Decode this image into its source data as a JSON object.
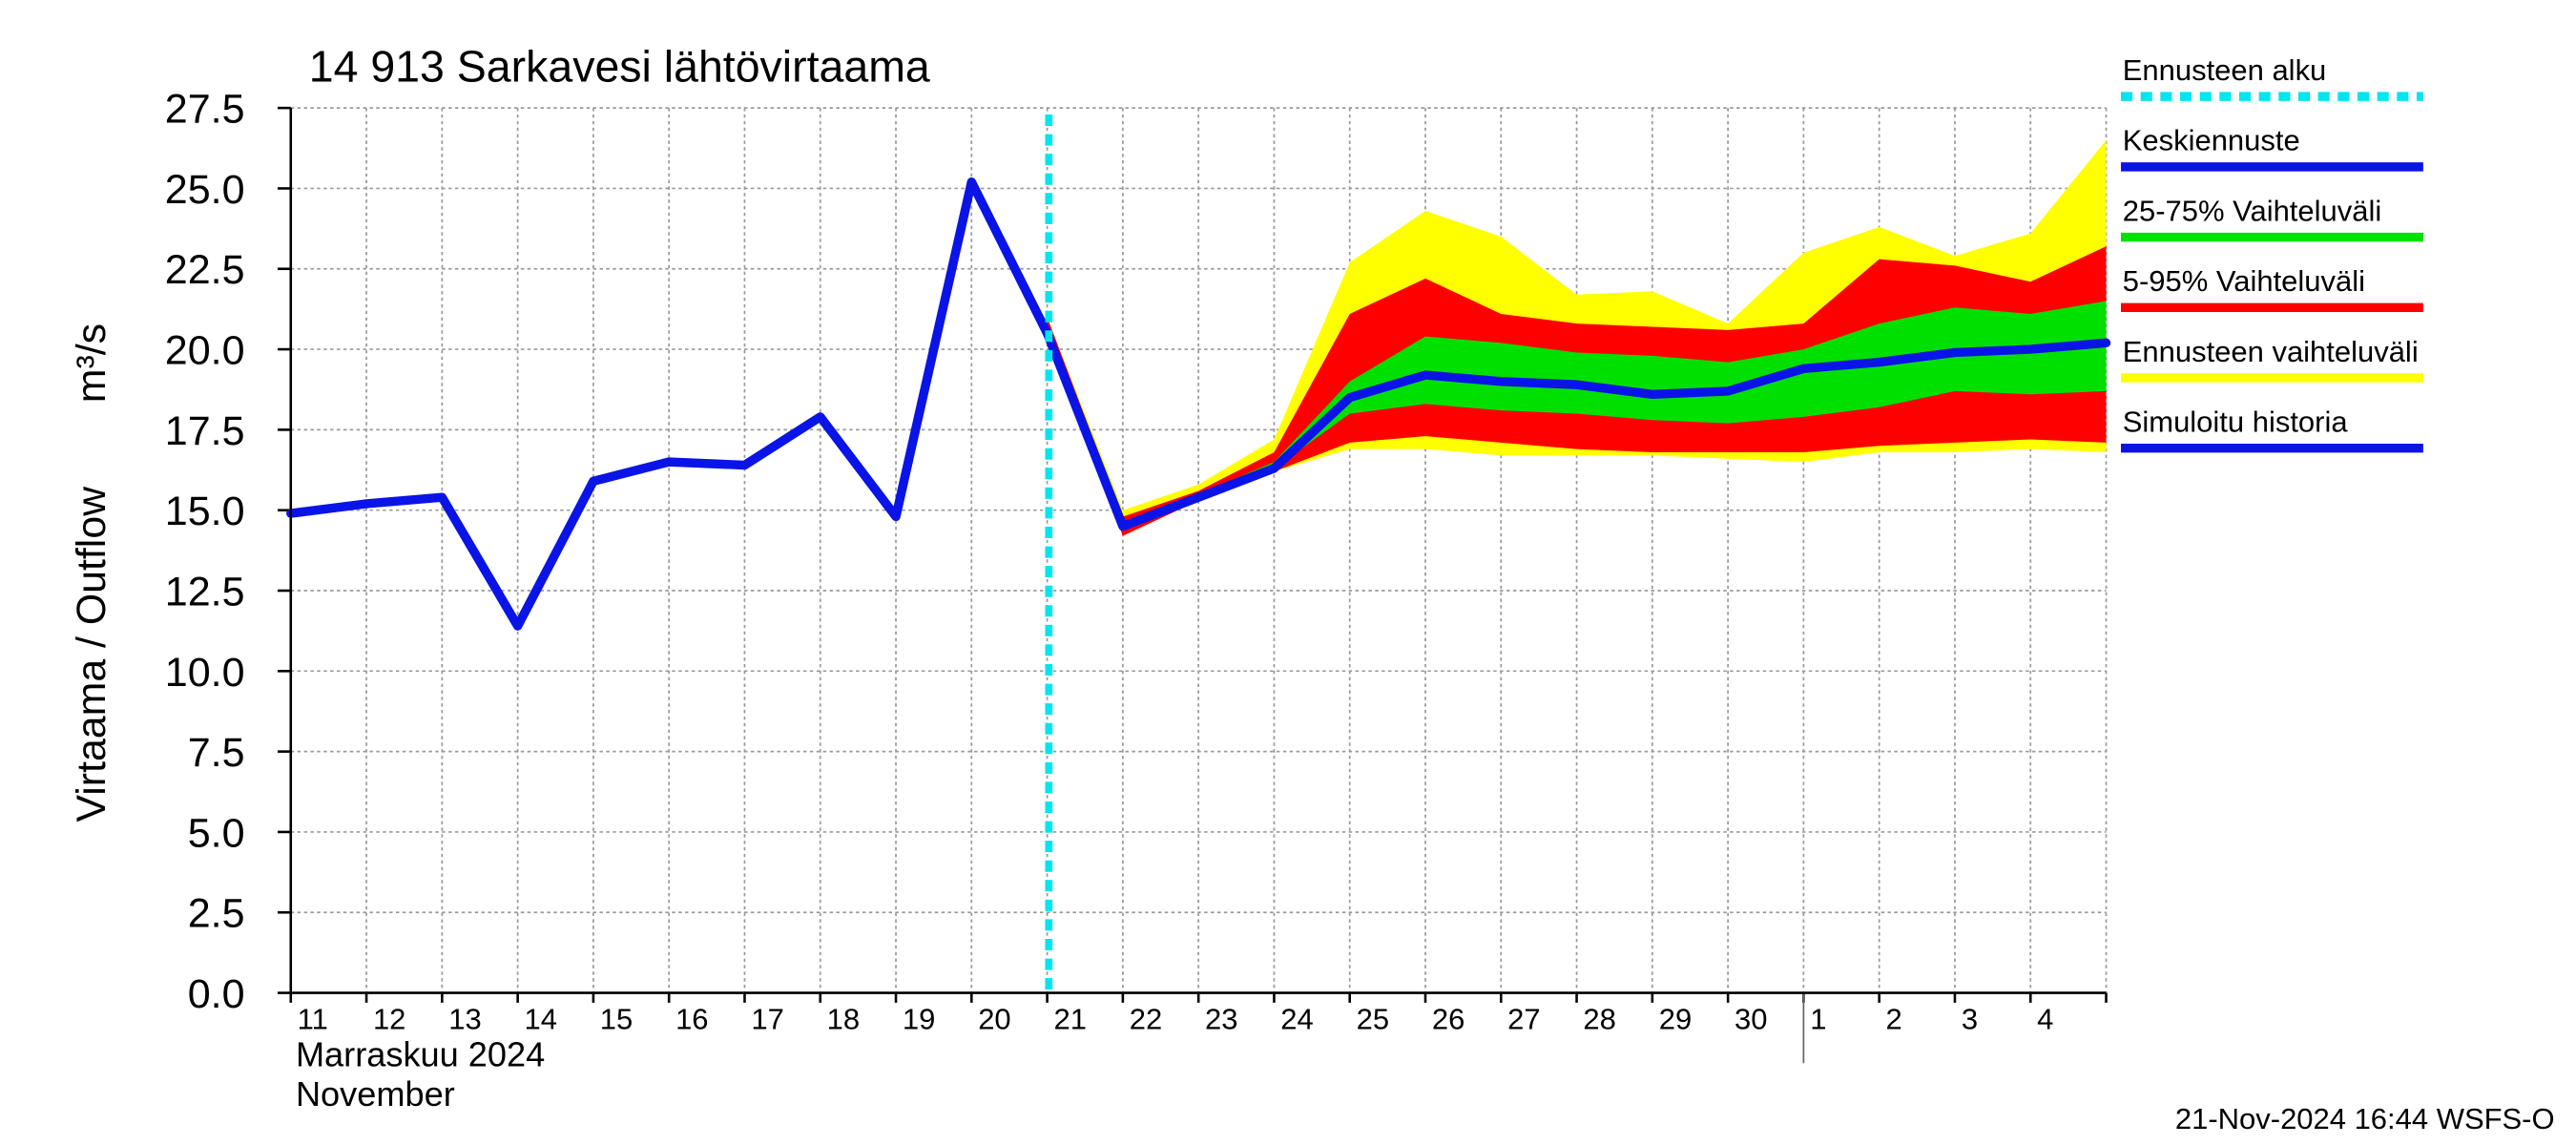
{
  "chart_data": {
    "type": "band_line",
    "title": "14 913 Sarkavesi lähtövirtaama",
    "y_label": "Virtaama / Outflow",
    "y_unit": "m³/s",
    "x_label": [
      "Marraskuu 2024",
      "November"
    ],
    "footer": "21-Nov-2024 16:44 WSFS-O",
    "categories": [
      "11",
      "12",
      "13",
      "14",
      "15",
      "16",
      "17",
      "18",
      "19",
      "20",
      "21",
      "22",
      "23",
      "24",
      "25",
      "26",
      "27",
      "28",
      "29",
      "30",
      "1",
      "2",
      "3",
      "4",
      null
    ],
    "ylim": [
      0,
      27.5
    ],
    "yticks": [
      {
        "value": 0,
        "label": "0.0"
      },
      {
        "value": 2.5,
        "label": "2.5"
      },
      {
        "value": 5,
        "label": "5.0"
      },
      {
        "value": 7.5,
        "label": "7.5"
      },
      {
        "value": 10,
        "label": "10.0"
      },
      {
        "value": 12.5,
        "label": "12.5"
      },
      {
        "value": 15,
        "label": "15.0"
      },
      {
        "value": 17.5,
        "label": "17.5"
      },
      {
        "value": 20,
        "label": "20.0"
      },
      {
        "value": 22.5,
        "label": "22.5"
      },
      {
        "value": 25,
        "label": "25.0"
      },
      {
        "value": 27.5,
        "label": "27.5"
      }
    ],
    "grid": true,
    "forecast_start": {
      "name": "Ennusteen alku",
      "color": "#00e5ee",
      "x": "21"
    },
    "bands": [
      {
        "name": "25-75% Vaihteluväli",
        "color": "#00e000",
        "low": [
          null,
          null,
          null,
          null,
          null,
          null,
          null,
          null,
          null,
          null,
          20.5,
          14.4,
          15.4,
          16.3,
          18.0,
          18.3,
          18.1,
          18.0,
          17.8,
          17.7,
          17.9,
          18.2,
          18.7,
          18.6,
          18.7
        ],
        "high": [
          null,
          null,
          null,
          null,
          null,
          null,
          null,
          null,
          null,
          null,
          20.6,
          14.6,
          15.5,
          16.5,
          19.0,
          20.4,
          20.2,
          19.9,
          19.8,
          19.6,
          20.0,
          20.8,
          21.3,
          21.1,
          21.5
        ]
      },
      {
        "name": "5-95% Vaihteluväli",
        "color": "#ff0000",
        "low": [
          null,
          null,
          null,
          null,
          null,
          null,
          null,
          null,
          null,
          null,
          20.4,
          14.2,
          15.3,
          16.2,
          17.1,
          17.3,
          17.1,
          16.9,
          16.8,
          16.8,
          16.8,
          17.0,
          17.1,
          17.2,
          17.1
        ],
        "high": [
          null,
          null,
          null,
          null,
          null,
          null,
          null,
          null,
          null,
          null,
          21.0,
          14.8,
          15.6,
          16.8,
          21.1,
          22.2,
          21.1,
          20.8,
          20.7,
          20.6,
          20.8,
          22.8,
          22.6,
          22.1,
          23.2
        ]
      },
      {
        "name": "Ennusteen vaihteluväli",
        "color": "#ffff00",
        "low": [
          null,
          null,
          null,
          null,
          null,
          null,
          null,
          null,
          null,
          null,
          20.4,
          14.2,
          15.3,
          16.2,
          16.9,
          16.9,
          16.7,
          16.7,
          16.7,
          16.6,
          16.5,
          16.8,
          16.8,
          16.9,
          16.8
        ],
        "high": [
          null,
          null,
          null,
          null,
          null,
          null,
          null,
          null,
          null,
          null,
          21.0,
          15.0,
          15.8,
          17.2,
          22.7,
          24.3,
          23.5,
          21.7,
          21.8,
          20.8,
          23.0,
          23.8,
          22.9,
          23.6,
          26.5
        ]
      }
    ],
    "series": [
      {
        "name": "Keskiennuste",
        "color": "#0a14e6",
        "values": [
          null,
          null,
          null,
          null,
          null,
          null,
          null,
          null,
          null,
          null,
          20.5,
          14.5,
          15.4,
          16.3,
          18.5,
          19.2,
          19.0,
          18.9,
          18.6,
          18.7,
          19.4,
          19.6,
          19.9,
          20.0,
          20.2
        ]
      },
      {
        "name": "Simuloitu historia",
        "color": "#0a14e6",
        "values": [
          14.9,
          15.2,
          15.4,
          11.4,
          15.9,
          16.5,
          16.4,
          17.9,
          14.8,
          25.2,
          20.5,
          null,
          null,
          null,
          null,
          null,
          null,
          null,
          null,
          null,
          null,
          null,
          null,
          null,
          null
        ]
      }
    ]
  }
}
